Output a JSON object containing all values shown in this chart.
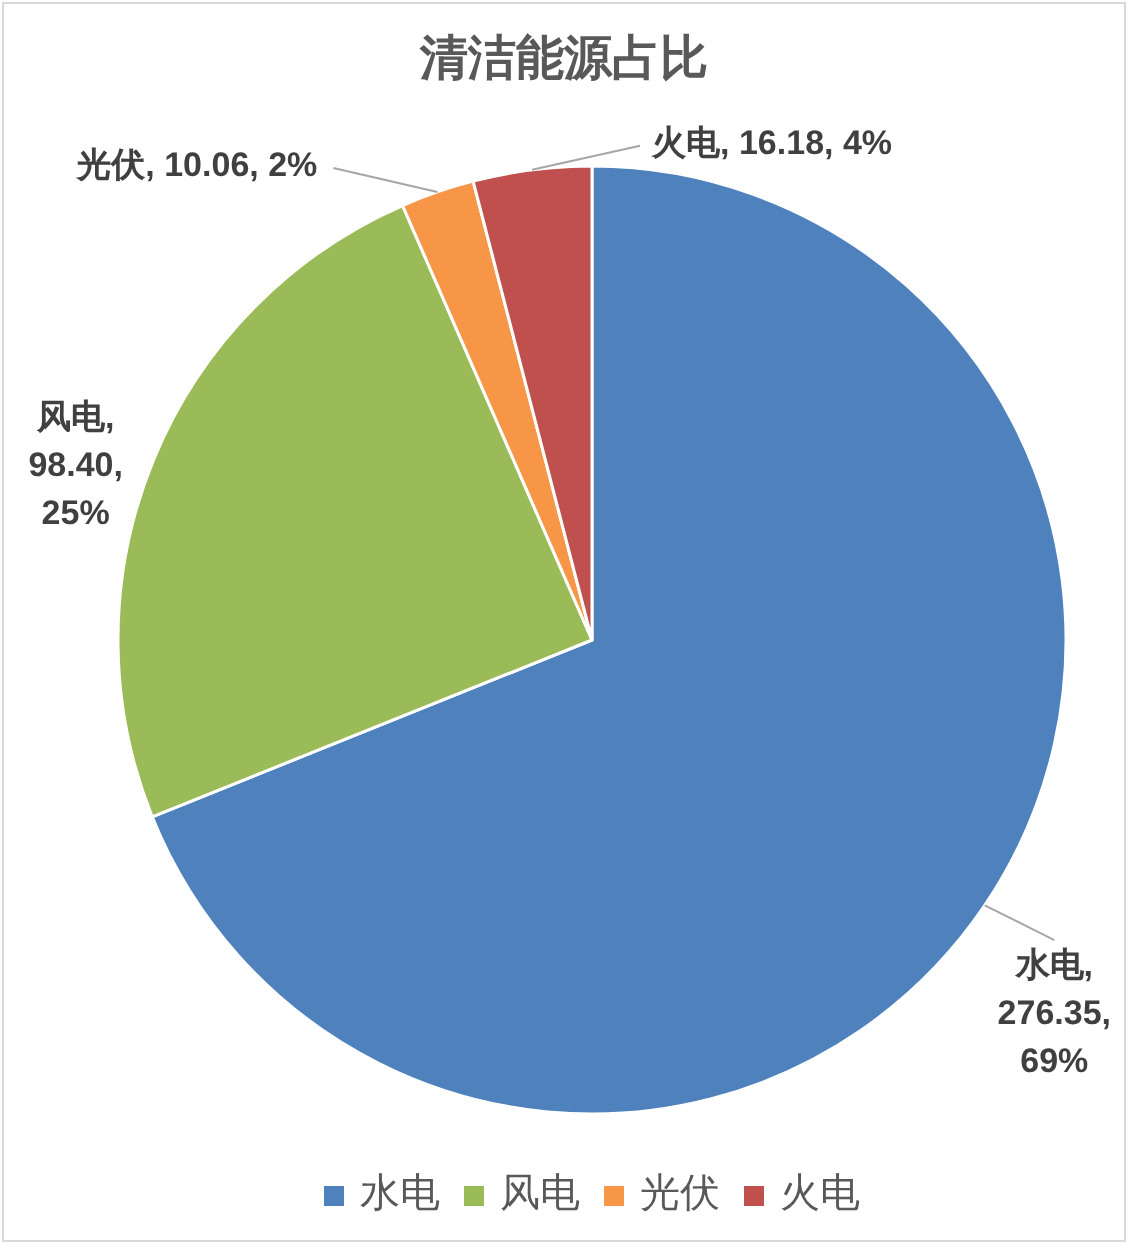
{
  "chart_data": {
    "type": "pie",
    "title": "清洁能源占比",
    "categories": [
      "水电",
      "风电",
      "光伏",
      "火电"
    ],
    "values": [
      276.35,
      98.4,
      10.06,
      16.18
    ],
    "colors": [
      "#4f81bd",
      "#9bbb59",
      "#f79646",
      "#c0504d"
    ],
    "value_labels": [
      "水电, 276.35, 69%",
      "风电, 98.40, 25%",
      "光伏, 10.06, 2%",
      "火电, 16.18, 4%"
    ],
    "legend": "bottom"
  }
}
